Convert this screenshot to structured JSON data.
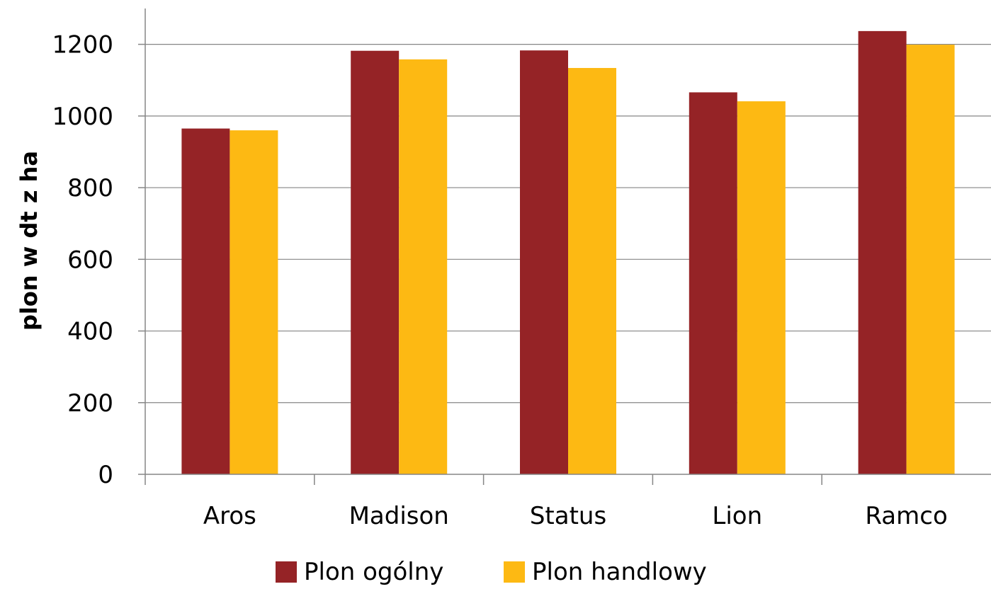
{
  "chart_data": {
    "type": "bar",
    "title": "",
    "xlabel": "",
    "ylabel": "plon w dt z ha",
    "categories": [
      "Aros",
      "Madison",
      "Status",
      "Lion",
      "Ramco"
    ],
    "series": [
      {
        "name": "Plon ogólny",
        "color": "#952326",
        "values": [
          965,
          1182,
          1183,
          1066,
          1237
        ]
      },
      {
        "name": "Plon handlowy",
        "color": "#FDB913",
        "values": [
          960,
          1158,
          1134,
          1041,
          1199
        ]
      }
    ],
    "ylim": [
      0,
      1300
    ],
    "yticks": [
      "0",
      "200",
      "400",
      "600",
      "800",
      "1000",
      "1200"
    ],
    "grid": true,
    "legend_position": "bottom"
  }
}
